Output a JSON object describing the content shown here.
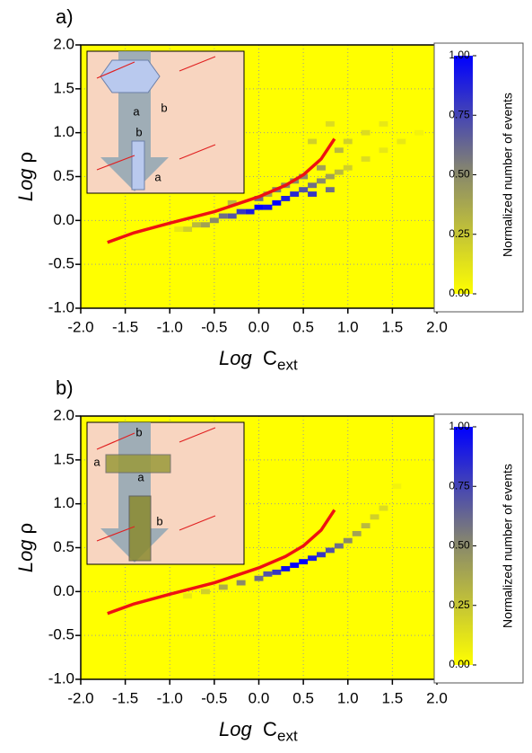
{
  "chart_data": [
    {
      "type": "heatmap",
      "panel_label": "a)",
      "x_label": "Log",
      "x_label_var": "C",
      "x_label_sub": "ext",
      "y_label": "Log",
      "y_label_var": "ρ",
      "xlim": [
        -2,
        2
      ],
      "ylim": [
        -1,
        2
      ],
      "xticks": [
        {
          "value": -2,
          "label": "-2.0"
        },
        {
          "value": -1.5,
          "label": "-1.5"
        },
        {
          "value": -1,
          "label": "-1.0"
        },
        {
          "value": -0.5,
          "label": "-0.5"
        },
        {
          "value": 0,
          "label": "0.0"
        },
        {
          "value": 0.5,
          "label": "0.5"
        },
        {
          "value": 1,
          "label": "1.0"
        },
        {
          "value": 1.5,
          "label": "1.5"
        },
        {
          "value": 2,
          "label": "2.0"
        }
      ],
      "yticks": [
        {
          "value": -1,
          "label": "-1.0"
        },
        {
          "value": -0.5,
          "label": "-0.5"
        },
        {
          "value": 0,
          "label": "0.0"
        },
        {
          "value": 0.5,
          "label": "0.5"
        },
        {
          "value": 1,
          "label": "1.0"
        },
        {
          "value": 1.5,
          "label": "1.5"
        },
        {
          "value": 2,
          "label": "2.0"
        }
      ],
      "grid": true,
      "background": "#ffff00",
      "colormap": [
        "#ffff00",
        "#8a8a6a",
        "#0000ff"
      ],
      "colorbar_label": "Normalized number of events",
      "colorbar_lim": [
        0,
        1
      ],
      "colorbar_ticks": [
        {
          "value": 0,
          "label": "0.00"
        },
        {
          "value": 0.25,
          "label": "0.25"
        },
        {
          "value": 0.5,
          "label": "0.50"
        },
        {
          "value": 0.75,
          "label": "0.75"
        },
        {
          "value": 1,
          "label": "1.00"
        }
      ],
      "heatmap": {
        "x": [
          -0.9,
          -0.8,
          -0.7,
          -0.6,
          -0.5,
          -0.4,
          -0.3,
          -0.2,
          -0.1,
          0,
          0.1,
          0.2,
          0.3,
          0.4,
          0.5,
          0.6,
          0.7,
          0.8,
          0.9,
          1.0,
          1.2,
          1.4,
          1.6,
          1.8,
          0.1,
          0.3,
          0.5,
          0.7,
          0.9,
          0.6,
          0.8,
          1.0,
          1.2,
          1.4,
          -0.3,
          0.0,
          0.2,
          0.4,
          0.6,
          0.8
        ],
        "y": [
          -0.1,
          -0.1,
          -0.05,
          -0.05,
          0,
          0.05,
          0.05,
          0.1,
          0.1,
          0.15,
          0.15,
          0.2,
          0.25,
          0.3,
          0.35,
          0.4,
          0.45,
          0.5,
          0.55,
          0.6,
          0.7,
          0.8,
          0.9,
          1.0,
          0.3,
          0.4,
          0.5,
          0.6,
          0.8,
          0.9,
          1.1,
          0.9,
          1.0,
          1.1,
          0.2,
          0.25,
          0.35,
          0.45,
          0.3,
          0.35
        ],
        "values": [
          0.1,
          0.2,
          0.3,
          0.4,
          0.5,
          0.6,
          0.7,
          0.8,
          0.9,
          1.0,
          0.95,
          1.0,
          0.9,
          0.85,
          0.7,
          0.6,
          0.5,
          0.4,
          0.3,
          0.2,
          0.15,
          0.1,
          0.1,
          0.05,
          0.4,
          0.5,
          0.5,
          0.4,
          0.3,
          0.2,
          0.15,
          0.2,
          0.15,
          0.1,
          0.3,
          0.6,
          0.55,
          0.5,
          0.8,
          0.6
        ]
      },
      "series": [
        {
          "color": "#ee1111",
          "x": [
            -1.7,
            -1.4,
            -1.0,
            -0.5,
            0,
            0.3,
            0.5,
            0.7,
            0.85
          ],
          "values": [
            -0.25,
            -0.14,
            -0.03,
            0.1,
            0.27,
            0.4,
            0.52,
            0.7,
            0.93
          ]
        }
      ],
      "inset_labels": [
        "a",
        "b",
        "b",
        "a"
      ]
    },
    {
      "type": "heatmap",
      "panel_label": "b)",
      "x_label": "Log",
      "x_label_var": "C",
      "x_label_sub": "ext",
      "y_label": "Log",
      "y_label_var": "ρ",
      "xlim": [
        -2,
        2
      ],
      "ylim": [
        -1,
        2
      ],
      "xticks": [
        {
          "value": -2,
          "label": "-2.0"
        },
        {
          "value": -1.5,
          "label": "-1.5"
        },
        {
          "value": -1,
          "label": "-1.0"
        },
        {
          "value": -0.5,
          "label": "-0.5"
        },
        {
          "value": 0,
          "label": "0.0"
        },
        {
          "value": 0.5,
          "label": "0.5"
        },
        {
          "value": 1,
          "label": "1.0"
        },
        {
          "value": 1.5,
          "label": "1.5"
        },
        {
          "value": 2,
          "label": "2.0"
        }
      ],
      "yticks": [
        {
          "value": -1,
          "label": "-1.0"
        },
        {
          "value": -0.5,
          "label": "-0.5"
        },
        {
          "value": 0,
          "label": "0.0"
        },
        {
          "value": 0.5,
          "label": "0.5"
        },
        {
          "value": 1,
          "label": "1.0"
        },
        {
          "value": 1.5,
          "label": "1.5"
        },
        {
          "value": 2,
          "label": "2.0"
        }
      ],
      "grid": true,
      "background": "#ffff00",
      "colormap": [
        "#ffff00",
        "#8a8a6a",
        "#0000ff"
      ],
      "colorbar_label": "Normalized number of events",
      "colorbar_lim": [
        0,
        1
      ],
      "colorbar_ticks": [
        {
          "value": 0,
          "label": "0.00"
        },
        {
          "value": 0.25,
          "label": "0.25"
        },
        {
          "value": 0.5,
          "label": "0.50"
        },
        {
          "value": 0.75,
          "label": "0.75"
        },
        {
          "value": 1,
          "label": "1.00"
        }
      ],
      "heatmap": {
        "x": [
          -0.8,
          -0.6,
          -0.4,
          -0.2,
          0,
          0.2,
          0.4,
          0.6,
          0.8,
          1.0,
          1.2,
          1.4,
          1.55,
          0.1,
          0.3,
          0.5,
          0.7,
          0.9,
          1.1,
          1.3
        ],
        "y": [
          -0.05,
          0,
          0.05,
          0.1,
          0.15,
          0.22,
          0.3,
          0.38,
          0.47,
          0.58,
          0.75,
          0.95,
          1.2,
          0.2,
          0.26,
          0.34,
          0.42,
          0.52,
          0.66,
          0.85
        ],
        "values": [
          0.1,
          0.2,
          0.35,
          0.5,
          0.6,
          0.8,
          1.0,
          0.9,
          0.7,
          0.5,
          0.3,
          0.15,
          0.05,
          0.7,
          0.95,
          1.0,
          0.8,
          0.6,
          0.4,
          0.2
        ]
      },
      "series": [
        {
          "color": "#ee1111",
          "x": [
            -1.7,
            -1.4,
            -1.0,
            -0.5,
            0,
            0.3,
            0.5,
            0.7,
            0.85
          ],
          "values": [
            -0.25,
            -0.14,
            -0.03,
            0.1,
            0.27,
            0.4,
            0.52,
            0.7,
            0.93
          ]
        }
      ],
      "inset_labels": [
        "b",
        "a",
        "a",
        "b"
      ]
    }
  ]
}
